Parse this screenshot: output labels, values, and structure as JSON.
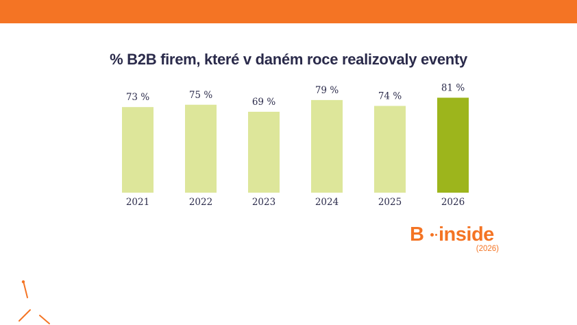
{
  "chart_data": {
    "type": "bar",
    "title": "% B2B firem, které v daném roce realizovaly eventy",
    "categories": [
      "2021",
      "2022",
      "2023",
      "2024",
      "2025",
      "2026"
    ],
    "values": [
      73,
      75,
      69,
      79,
      74,
      81
    ],
    "value_labels": [
      "73 %",
      "75 %",
      "69 %",
      "79 %",
      "74 %",
      "81 %"
    ],
    "xlabel": "",
    "ylabel": "",
    "ylim": [
      0,
      100
    ],
    "grid": false,
    "colors": {
      "default_bar": "#dde69a",
      "highlight_bar": "#9db51c",
      "highlight_category": "2026"
    }
  },
  "brand": {
    "letter": "B",
    "word": "inside",
    "year": "(2026)",
    "color": "#f47424"
  },
  "theme": {
    "top_band_color": "#f47424",
    "text_color": "#2a2a4a"
  }
}
